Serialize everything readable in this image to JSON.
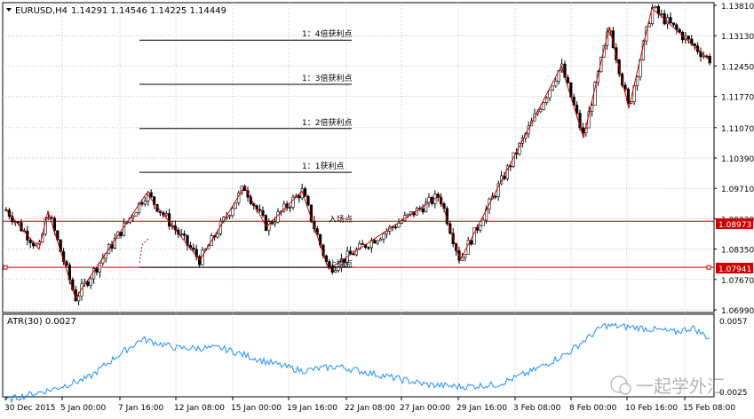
{
  "header": {
    "symbol_tf": "EURUSD,H4",
    "ohlc": "1.14291 1.14546 1.14225 1.14449"
  },
  "levels": [
    {
      "ratio_label": "1：4倍获利点",
      "price": 1.1303
    },
    {
      "ratio_label": "1：3倍获利点",
      "price": 1.1204
    },
    {
      "ratio_label": "1：2倍获利点",
      "price": 1.1105
    },
    {
      "ratio_label": "1：1获利点",
      "price": 1.1007
    }
  ],
  "entry": {
    "label": "入场点",
    "price": 1.08973,
    "badge": "1.08973"
  },
  "stop": {
    "label": "止损点",
    "price": 1.07941,
    "badge": "1.07941"
  },
  "price_axis": [
    "1.13810",
    "1.13130",
    "1.12450",
    "1.11770",
    "1.11070",
    "1.10390",
    "1.09710",
    "1.09030",
    "1.08350",
    "1.07670",
    "1.06990"
  ],
  "time_axis": [
    "30 Dec 2015",
    "5 Jan 00:00",
    "7 Jan 16:00",
    "12 Jan 08:00",
    "15 Jan 00:00",
    "19 Jan 16:00",
    "22 Jan 08:00",
    "27 Jan 00:00",
    "29 Jan 16:00",
    "3 Feb 08:00",
    "8 Feb 00:00",
    "10 Feb 16:00",
    "15 Feb 08:00"
  ],
  "indicator": {
    "label": "ATR(30) 0.0027",
    "scale_top": "0.0057",
    "scale_bottom": "0.0025"
  },
  "watermark": "一起学外汇",
  "colors": {
    "bull": "#ffffff",
    "bear": "#000000",
    "zigzag": "#cc0000",
    "hline": "#cc0000",
    "atr": "#1e90ff",
    "grid": "#c0c0c0",
    "badge_bg": "#cc0000"
  },
  "chart_data": {
    "type": "candlestick",
    "price_range": [
      1.0699,
      1.1381
    ],
    "zigzag_price_pivots": [
      1.0925,
      1.0835,
      1.092,
      1.0725,
      1.096,
      1.0885,
      1.0975,
      1.0845,
      1.0975,
      1.086,
      1.097,
      1.08,
      1.0955,
      1.081,
      1.1245,
      1.1085,
      1.1333,
      1.115,
      1.1375,
      1.126
    ],
    "atr_range": [
      0.0025,
      0.0057
    ]
  }
}
